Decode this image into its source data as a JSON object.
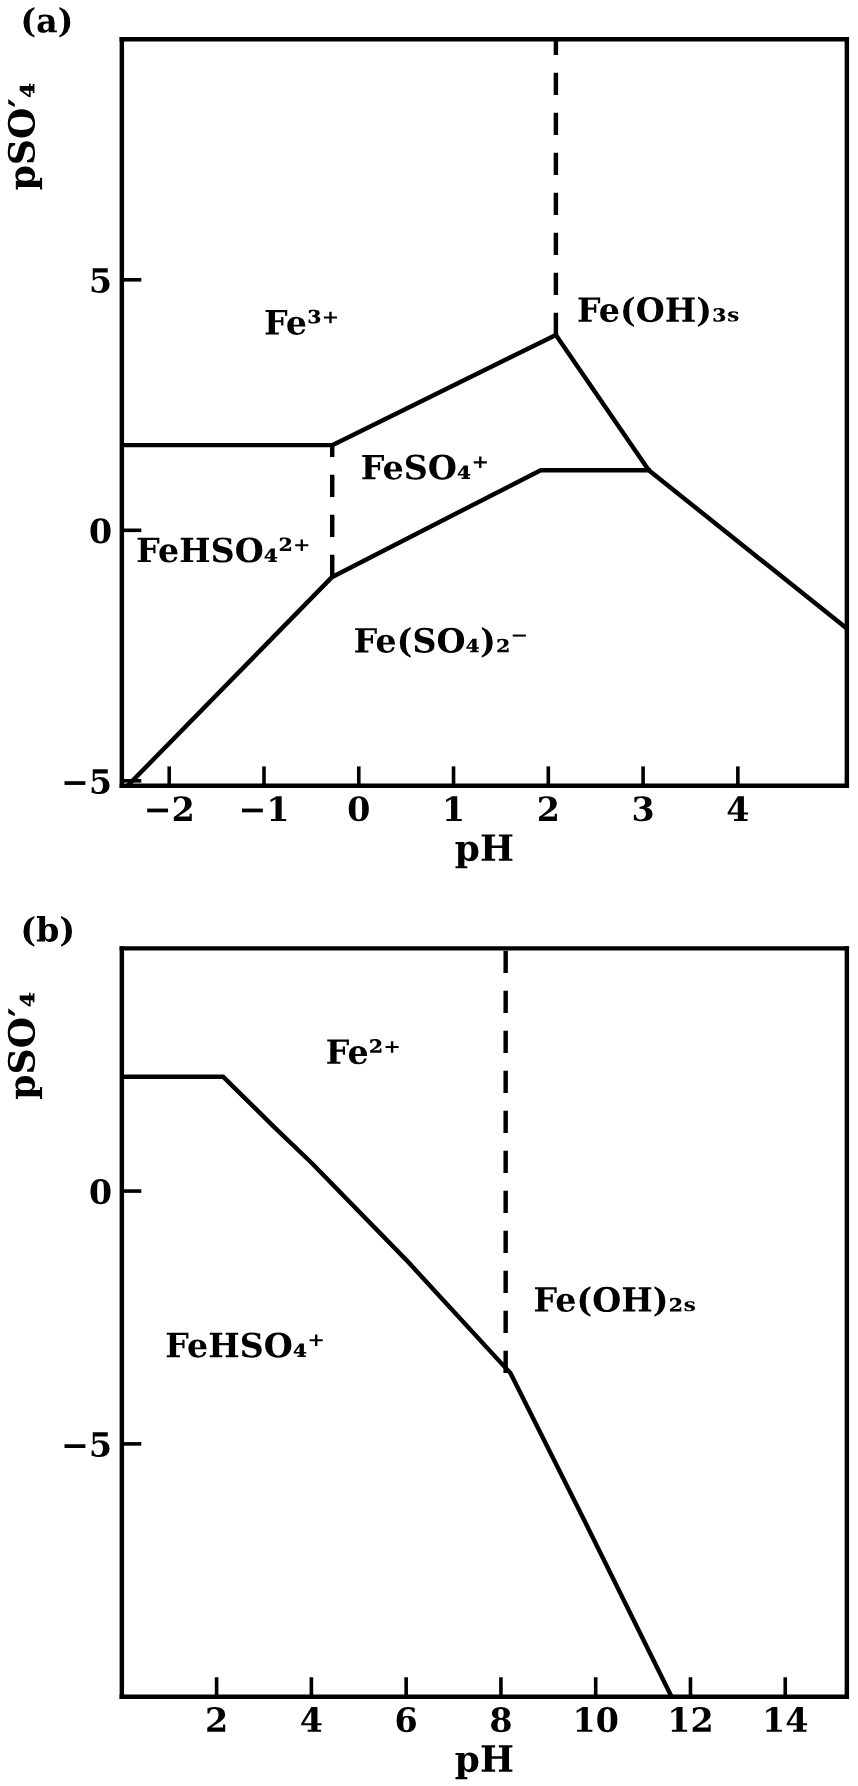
{
  "chart_data": [
    {
      "type": "line",
      "title": "(a)",
      "xlabel": "pH",
      "ylabel": "pSO′₄",
      "xlim": [
        -2.5,
        5.15
      ],
      "ylim": [
        -5.1,
        9.8
      ],
      "xticks": [
        -2,
        -1,
        0,
        1,
        2,
        3,
        4
      ],
      "yticks": [
        -5,
        0,
        5
      ],
      "grid": false,
      "legend": false,
      "marker": "none",
      "series": [
        {
          "color": "#000000",
          "line_style": "solid",
          "x": [
            -2.5,
            -0.28,
            2.08,
            3.06,
            5.15
          ],
          "values": [
            1.7,
            1.7,
            3.9,
            1.2,
            -1.96
          ]
        },
        {
          "color": "#000000",
          "line_style": "solid",
          "x": [
            -2.44,
            -0.28,
            1.92,
            3.06
          ],
          "values": [
            -5.1,
            -0.93,
            1.2,
            1.2
          ]
        },
        {
          "color": "#000000",
          "line_style": "dashed",
          "x": [
            -0.28,
            -0.28
          ],
          "values": [
            -0.93,
            1.7
          ]
        },
        {
          "color": "#000000",
          "line_style": "dashed",
          "x": [
            2.08,
            2.08
          ],
          "values": [
            3.9,
            9.8
          ]
        }
      ],
      "annotations": [
        "Fe³⁺",
        "Fe(OH)₃ₛ",
        "FeSO₄⁺",
        "FeHSO₄²⁺",
        "Fe(SO₄)₂⁻"
      ]
    },
    {
      "type": "line",
      "title": "(b)",
      "xlabel": "pH",
      "ylabel": "pSO′₄",
      "xlim": [
        0,
        15.3
      ],
      "ylim": [
        -10,
        4.8
      ],
      "xticks": [
        2,
        4,
        6,
        8,
        10,
        12,
        14
      ],
      "yticks": [
        -5,
        0
      ],
      "grid": false,
      "legend": false,
      "marker": "none",
      "series": [
        {
          "color": "#000000",
          "line_style": "solid",
          "x": [
            0,
            2.14,
            3.2,
            4.0,
            6.0,
            8.2,
            9.7,
            11.6
          ],
          "values": [
            2.26,
            2.26,
            1.28,
            0.56,
            -1.36,
            -3.6,
            -6.4,
            -10
          ]
        },
        {
          "color": "#000000",
          "line_style": "dashed",
          "x": [
            8.1,
            8.1
          ],
          "values": [
            -3.6,
            4.8
          ]
        }
      ],
      "annotations": [
        "Fe²⁺",
        "Fe(OH)₂ₛ",
        "FeHSO₄⁺"
      ]
    }
  ]
}
